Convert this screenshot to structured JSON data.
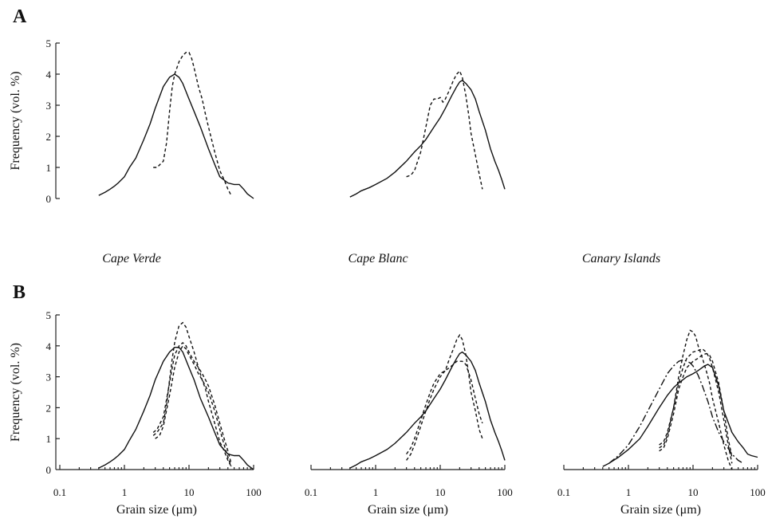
{
  "figure": {
    "panel_labels": [
      "A",
      "B"
    ],
    "region_labels": [
      "Cape Verde",
      "Cape Blanc",
      "Canary Islands"
    ]
  },
  "chart_data": [
    {
      "type": "line",
      "panel": "A",
      "subplot": "Cape Verde",
      "ylabel": "Frequency (vol. %)",
      "xlabel": "",
      "x_scale": "log",
      "xlim": [
        0.1,
        100
      ],
      "ylim": [
        0,
        5
      ],
      "yticks": [
        "0",
        "1",
        "2",
        "3",
        "4",
        "5"
      ],
      "series": [
        {
          "style": "solid",
          "x": [
            0.4,
            0.5,
            0.6,
            0.7,
            0.8,
            1.0,
            1.2,
            1.5,
            2,
            2.5,
            3,
            4,
            5,
            6,
            7,
            8,
            10,
            12,
            15,
            20,
            25,
            30,
            40,
            50,
            60,
            70,
            80,
            100
          ],
          "y": [
            0.1,
            0.2,
            0.3,
            0.4,
            0.5,
            0.7,
            1.0,
            1.3,
            1.9,
            2.4,
            2.9,
            3.6,
            3.9,
            4.0,
            3.9,
            3.7,
            3.2,
            2.8,
            2.3,
            1.6,
            1.1,
            0.7,
            0.5,
            0.45,
            0.45,
            0.3,
            0.15,
            0.0
          ]
        },
        {
          "style": "dashed",
          "x": [
            2.8,
            3.2,
            4,
            4.5,
            5,
            5.5,
            6,
            6.5,
            7,
            8,
            9,
            10,
            11,
            12,
            14,
            16,
            18,
            20,
            25,
            30,
            35,
            40,
            45
          ],
          "y": [
            1.0,
            1.0,
            1.2,
            1.8,
            2.8,
            3.6,
            4.0,
            4.2,
            4.4,
            4.6,
            4.7,
            4.7,
            4.5,
            4.2,
            3.6,
            3.2,
            2.7,
            2.3,
            1.5,
            0.9,
            0.6,
            0.3,
            0.1
          ]
        }
      ]
    },
    {
      "type": "line",
      "panel": "A",
      "subplot": "Cape Blanc",
      "xlabel": "",
      "x_scale": "log",
      "xlim": [
        0.1,
        100
      ],
      "ylim": [
        0,
        5
      ],
      "series": [
        {
          "style": "solid",
          "x": [
            0.4,
            0.5,
            0.6,
            0.8,
            1,
            1.5,
            2,
            3,
            4,
            5,
            6,
            8,
            10,
            12,
            15,
            18,
            20,
            22,
            25,
            30,
            35,
            40,
            50,
            60,
            70,
            80,
            90,
            100
          ],
          "y": [
            0.05,
            0.15,
            0.25,
            0.35,
            0.45,
            0.65,
            0.85,
            1.2,
            1.5,
            1.7,
            1.9,
            2.3,
            2.6,
            2.9,
            3.3,
            3.6,
            3.75,
            3.8,
            3.7,
            3.5,
            3.2,
            2.8,
            2.2,
            1.6,
            1.2,
            0.9,
            0.6,
            0.3
          ]
        },
        {
          "style": "dashed",
          "x": [
            3,
            3.5,
            4,
            5,
            6,
            7,
            8,
            9,
            10,
            11,
            12,
            14,
            16,
            18,
            20,
            22,
            25,
            28,
            30,
            35,
            40,
            45
          ],
          "y": [
            0.7,
            0.75,
            0.9,
            1.5,
            2.3,
            3.0,
            3.2,
            3.2,
            3.25,
            3.1,
            3.2,
            3.5,
            3.8,
            4.0,
            4.1,
            3.9,
            3.3,
            2.6,
            2.1,
            1.4,
            0.8,
            0.3
          ]
        }
      ]
    },
    {
      "type": "line",
      "panel": "B",
      "subplot": "Cape Verde",
      "ylabel": "Frequency (vol. %)",
      "xlabel": "Grain size (μm)",
      "x_scale": "log",
      "xlim": [
        0.1,
        100
      ],
      "ylim": [
        0,
        5
      ],
      "xticks": [
        "0.1",
        "1",
        "10",
        "100"
      ],
      "yticks": [
        "0",
        "1",
        "2",
        "3",
        "4",
        "5"
      ],
      "series": [
        {
          "style": "solid",
          "x": [
            0.4,
            0.5,
            0.6,
            0.7,
            0.8,
            1.0,
            1.2,
            1.5,
            2,
            2.5,
            3,
            4,
            5,
            6,
            7,
            8,
            10,
            12,
            15,
            20,
            25,
            30,
            40,
            50,
            60,
            70,
            80,
            100
          ],
          "y": [
            0.05,
            0.15,
            0.25,
            0.35,
            0.45,
            0.65,
            0.95,
            1.3,
            1.9,
            2.4,
            2.9,
            3.5,
            3.8,
            3.95,
            3.95,
            3.8,
            3.3,
            2.9,
            2.3,
            1.7,
            1.2,
            0.8,
            0.5,
            0.45,
            0.45,
            0.3,
            0.15,
            0.0
          ]
        },
        {
          "style": "dashed",
          "x": [
            2.8,
            3.2,
            4,
            4.5,
            5,
            5.5,
            6,
            6.5,
            7,
            8,
            9,
            10,
            12,
            14,
            16,
            18,
            20,
            25,
            30,
            35,
            40,
            45
          ],
          "y": [
            1.1,
            1.2,
            1.5,
            2.1,
            2.9,
            3.6,
            4.1,
            4.4,
            4.65,
            4.75,
            4.6,
            4.3,
            3.8,
            3.3,
            2.9,
            2.6,
            2.2,
            1.5,
            0.9,
            0.6,
            0.3,
            0.1
          ]
        },
        {
          "style": "dashed",
          "x": [
            2.8,
            3.2,
            4,
            5,
            5.5,
            6,
            7,
            8,
            9,
            10,
            12,
            14,
            16,
            18,
            20,
            25,
            30,
            35,
            40,
            45
          ],
          "y": [
            1.2,
            1.3,
            1.7,
            2.8,
            3.3,
            3.7,
            4.0,
            4.1,
            4.0,
            3.8,
            3.5,
            3.3,
            3.1,
            2.9,
            2.7,
            2.1,
            1.5,
            1.0,
            0.6,
            0.2
          ]
        },
        {
          "style": "dashed",
          "x": [
            3,
            3.5,
            4,
            5,
            6,
            7,
            8,
            9,
            10,
            12,
            14,
            16,
            18,
            20,
            25,
            30,
            35,
            40,
            45
          ],
          "y": [
            1.0,
            1.1,
            1.4,
            2.4,
            3.3,
            3.8,
            4.0,
            3.9,
            3.7,
            3.4,
            3.1,
            2.9,
            2.7,
            2.5,
            1.9,
            1.3,
            0.8,
            0.4,
            0.1
          ]
        }
      ]
    },
    {
      "type": "line",
      "panel": "B",
      "subplot": "Cape Blanc",
      "xlabel": "Grain size (μm)",
      "x_scale": "log",
      "xlim": [
        0.1,
        100
      ],
      "ylim": [
        0,
        5
      ],
      "xticks": [
        "0.1",
        "1",
        "10",
        "100"
      ],
      "series": [
        {
          "style": "solid",
          "x": [
            0.4,
            0.5,
            0.6,
            0.8,
            1,
            1.5,
            2,
            3,
            4,
            5,
            6,
            8,
            10,
            12,
            15,
            18,
            20,
            22,
            25,
            30,
            35,
            40,
            50,
            60,
            70,
            80,
            90,
            100
          ],
          "y": [
            0.05,
            0.15,
            0.25,
            0.35,
            0.45,
            0.65,
            0.85,
            1.2,
            1.5,
            1.7,
            1.9,
            2.3,
            2.6,
            2.9,
            3.3,
            3.6,
            3.75,
            3.8,
            3.7,
            3.5,
            3.2,
            2.8,
            2.2,
            1.6,
            1.2,
            0.9,
            0.6,
            0.3
          ]
        },
        {
          "style": "dashed",
          "x": [
            3,
            3.5,
            4,
            5,
            6,
            7,
            8,
            10,
            12,
            14,
            16,
            18,
            20,
            22,
            25,
            28,
            30,
            35,
            40,
            45
          ],
          "y": [
            0.3,
            0.5,
            0.8,
            1.4,
            1.9,
            2.3,
            2.6,
            3.0,
            3.2,
            3.6,
            3.9,
            4.2,
            4.35,
            4.2,
            3.7,
            3.0,
            2.5,
            1.9,
            1.3,
            1.0
          ]
        },
        {
          "style": "dashed",
          "x": [
            3,
            3.5,
            4,
            5,
            6,
            7,
            8,
            10,
            12,
            14,
            16,
            18,
            20,
            22,
            25,
            30,
            35,
            40,
            45
          ],
          "y": [
            0.5,
            0.7,
            1.0,
            1.6,
            2.1,
            2.5,
            2.8,
            3.1,
            3.2,
            3.3,
            3.4,
            3.5,
            3.5,
            3.5,
            3.4,
            2.9,
            2.3,
            1.8,
            1.5
          ]
        }
      ]
    },
    {
      "type": "line",
      "panel": "B",
      "subplot": "Canary Islands",
      "xlabel": "Grain size (μm)",
      "x_scale": "log",
      "xlim": [
        0.1,
        100
      ],
      "ylim": [
        0,
        5
      ],
      "xticks": [
        "0.1",
        "1",
        "10",
        "100"
      ],
      "series": [
        {
          "style": "solid",
          "x": [
            0.4,
            0.5,
            0.7,
            1,
            1.5,
            2,
            3,
            4,
            5,
            6,
            8,
            10,
            12,
            15,
            17,
            20,
            25,
            30,
            40,
            50,
            60,
            70,
            80,
            100
          ],
          "y": [
            0.1,
            0.2,
            0.4,
            0.65,
            1.0,
            1.4,
            2.0,
            2.4,
            2.65,
            2.8,
            3.0,
            3.1,
            3.2,
            3.35,
            3.4,
            3.3,
            2.7,
            1.9,
            1.2,
            0.9,
            0.7,
            0.5,
            0.45,
            0.4
          ]
        },
        {
          "style": "longdash",
          "x": [
            0.5,
            0.7,
            1,
            1.5,
            2,
            3,
            4,
            5,
            6,
            7,
            8,
            9,
            10,
            12,
            14,
            17,
            20,
            25,
            30,
            40,
            50,
            60
          ],
          "y": [
            0.2,
            0.45,
            0.8,
            1.4,
            1.9,
            2.6,
            3.1,
            3.35,
            3.5,
            3.55,
            3.5,
            3.45,
            3.35,
            3.05,
            2.7,
            2.2,
            1.7,
            1.2,
            0.9,
            0.5,
            0.3,
            0.2
          ]
        },
        {
          "style": "dashed",
          "x": [
            3,
            3.5,
            4,
            5,
            6,
            7,
            8,
            9,
            10,
            11,
            12,
            14,
            16,
            18,
            20,
            25,
            30,
            35,
            40
          ],
          "y": [
            0.7,
            0.8,
            1.1,
            2.0,
            3.0,
            3.7,
            4.2,
            4.5,
            4.45,
            4.3,
            4.0,
            3.6,
            3.2,
            2.8,
            2.3,
            1.5,
            0.8,
            0.3,
            0.0
          ]
        },
        {
          "style": "dashed",
          "x": [
            3,
            3.5,
            4,
            5,
            6,
            7,
            8,
            10,
            12,
            14,
            16,
            18,
            20,
            25,
            30,
            35,
            40
          ],
          "y": [
            0.8,
            0.9,
            1.2,
            2.0,
            2.8,
            3.3,
            3.6,
            3.8,
            3.85,
            3.9,
            3.8,
            3.6,
            3.3,
            2.5,
            1.6,
            0.8,
            0.2
          ]
        },
        {
          "style": "dashed",
          "x": [
            3,
            3.5,
            4,
            5,
            6,
            7,
            8,
            10,
            12,
            14,
            16,
            18,
            20,
            25,
            30,
            35,
            40
          ],
          "y": [
            0.6,
            0.7,
            1.0,
            1.8,
            2.6,
            3.0,
            3.3,
            3.5,
            3.6,
            3.7,
            3.75,
            3.7,
            3.5,
            2.8,
            1.9,
            1.0,
            0.4
          ]
        }
      ]
    }
  ]
}
